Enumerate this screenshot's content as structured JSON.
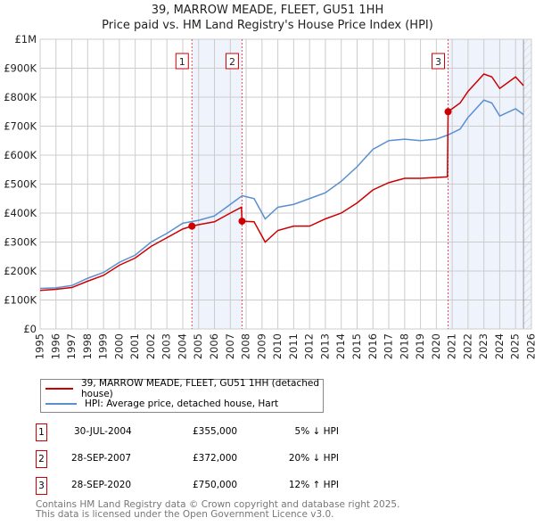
{
  "title": "39, MARROW MEADE, FLEET, GU51 1HH",
  "subtitle": "Price paid vs. HM Land Registry's House Price Index (HPI)",
  "colors": {
    "property": "#cc0000",
    "hpi": "#5b8fd0",
    "shade": "#eef3fc"
  },
  "chart_data": {
    "type": "line",
    "xlim": [
      1995,
      2026
    ],
    "ylim": [
      0,
      1000000
    ],
    "yticks": [
      {
        "v": 0,
        "label": "£0"
      },
      {
        "v": 100000,
        "label": "£100K"
      },
      {
        "v": 200000,
        "label": "£200K"
      },
      {
        "v": 300000,
        "label": "£300K"
      },
      {
        "v": 400000,
        "label": "£400K"
      },
      {
        "v": 500000,
        "label": "£500K"
      },
      {
        "v": 600000,
        "label": "£600K"
      },
      {
        "v": 700000,
        "label": "£700K"
      },
      {
        "v": 800000,
        "label": "£800K"
      },
      {
        "v": 900000,
        "label": "£900K"
      },
      {
        "v": 1000000,
        "label": "£1M"
      }
    ],
    "xticks": [
      "1995",
      "1996",
      "1997",
      "1998",
      "1999",
      "2000",
      "2001",
      "2002",
      "2003",
      "2004",
      "2005",
      "2006",
      "2007",
      "2008",
      "2009",
      "2010",
      "2011",
      "2012",
      "2013",
      "2014",
      "2015",
      "2016",
      "2017",
      "2018",
      "2019",
      "2020",
      "2021",
      "2022",
      "2023",
      "2024",
      "2025",
      "2026"
    ],
    "series": [
      {
        "name": "39, MARROW MEADE, FLEET, GU51 1HH (detached house)",
        "x": [
          1995,
          1996,
          1997,
          1998,
          1999,
          2000,
          2001,
          2002,
          2003,
          2004,
          2004.58,
          2005,
          2006,
          2007,
          2007.7,
          2007.74,
          2008.5,
          2009.2,
          2010,
          2011,
          2012,
          2013,
          2014,
          2015,
          2016,
          2017,
          2018,
          2019,
          2020.7,
          2020.74,
          2021.5,
          2022,
          2023,
          2023.5,
          2024,
          2025,
          2025.5
        ],
        "values": [
          133000,
          137000,
          143000,
          165000,
          185000,
          220000,
          245000,
          285000,
          315000,
          345000,
          355000,
          360000,
          370000,
          400000,
          420000,
          372000,
          370000,
          300000,
          340000,
          355000,
          355000,
          380000,
          400000,
          435000,
          480000,
          505000,
          520000,
          520000,
          525000,
          750000,
          780000,
          820000,
          880000,
          870000,
          830000,
          870000,
          840000
        ]
      },
      {
        "name": "HPI: Average price, detached house, Hart",
        "x": [
          1995,
          1996,
          1997,
          1998,
          1999,
          2000,
          2001,
          2002,
          2003,
          2004,
          2005,
          2006,
          2007,
          2007.75,
          2008.5,
          2009.2,
          2010,
          2011,
          2012,
          2013,
          2014,
          2015,
          2016,
          2017,
          2018,
          2019,
          2020,
          2020.75,
          2021.5,
          2022,
          2023,
          2023.5,
          2024,
          2025,
          2025.5
        ],
        "values": [
          140000,
          142000,
          150000,
          175000,
          195000,
          230000,
          255000,
          300000,
          330000,
          365000,
          375000,
          390000,
          430000,
          460000,
          450000,
          380000,
          420000,
          430000,
          450000,
          470000,
          510000,
          560000,
          620000,
          650000,
          655000,
          650000,
          655000,
          670000,
          690000,
          730000,
          790000,
          780000,
          735000,
          760000,
          740000
        ]
      }
    ],
    "sales": [
      {
        "n": "1",
        "x": 2004.58,
        "value": 355000,
        "date": "30-JUL-2004",
        "price": "£355,000",
        "hpi": "5% ↓ HPI"
      },
      {
        "n": "2",
        "x": 2007.74,
        "value": 372000,
        "date": "28-SEP-2007",
        "price": "£372,000",
        "hpi": "20% ↓ HPI"
      },
      {
        "n": "3",
        "x": 2020.74,
        "value": 750000,
        "date": "28-SEP-2020",
        "price": "£750,000",
        "hpi": "12% ↑ HPI"
      }
    ],
    "forecast_from": 2025.5
  },
  "footer": [
    "Contains HM Land Registry data © Crown copyright and database right 2025.",
    "This data is licensed under the Open Government Licence v3.0."
  ]
}
